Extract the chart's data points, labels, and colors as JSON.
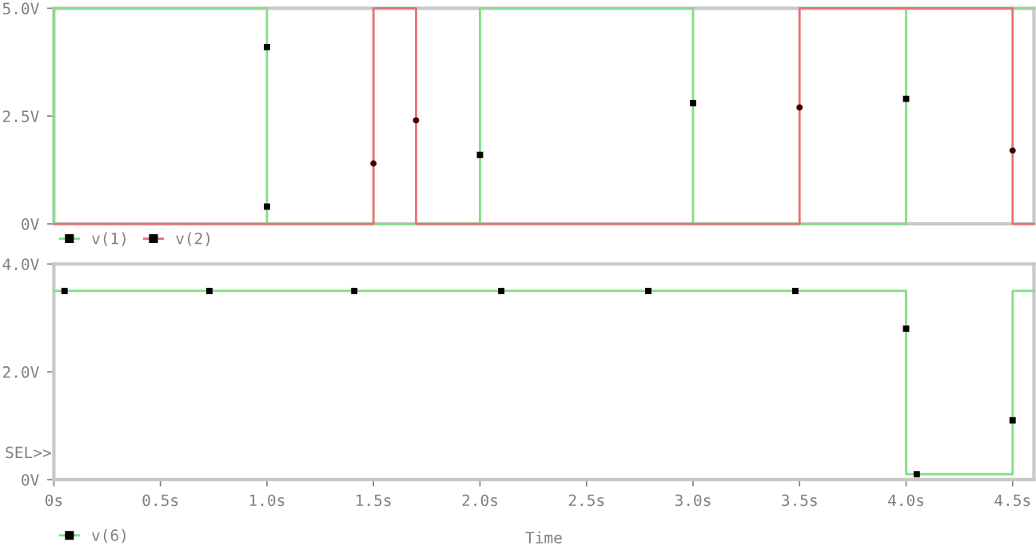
{
  "chart_data": [
    {
      "type": "line",
      "xlim": [
        0,
        4.6
      ],
      "ylim": [
        0,
        5.0
      ],
      "yticks": [
        {
          "value": 0,
          "label": "0V"
        },
        {
          "value": 2.5,
          "label": "2.5V"
        },
        {
          "value": 5.0,
          "label": "5.0V"
        }
      ],
      "tick_labels": "y",
      "grid": false,
      "legend": "bottom left",
      "marker": "none",
      "series": [
        {
          "name": "v(1)",
          "color": "#80e080",
          "x": [
            0,
            0,
            1,
            1,
            2,
            2,
            3,
            3,
            4,
            4,
            4.6
          ],
          "values": [
            0,
            5,
            5,
            0,
            0,
            5,
            5,
            0,
            0,
            5,
            5
          ]
        },
        {
          "name": "v(2)",
          "color": "#e87070",
          "x": [
            0,
            1.5,
            1.5,
            1.7,
            1.7,
            3.5,
            3.5,
            4.5,
            4.5,
            4.6
          ],
          "values": [
            0,
            0,
            5,
            5,
            0,
            0,
            5,
            5,
            0,
            0
          ]
        },
        {
          "type": "scatter",
          "marker": "square",
          "color": "#000000",
          "x": [
            1.0,
            1.0,
            2.0,
            3.0,
            4.0
          ],
          "values": [
            4.1,
            0.4,
            1.6,
            2.8,
            2.9
          ]
        },
        {
          "type": "scatter",
          "marker": "circle",
          "color": "#400000",
          "x": [
            1.5,
            1.7,
            3.5,
            4.5
          ],
          "values": [
            1.4,
            2.4,
            2.7,
            1.7
          ]
        }
      ]
    },
    {
      "type": "line",
      "xlim": [
        0,
        4.6
      ],
      "ylim": [
        0,
        4.0
      ],
      "xlabel": "Time",
      "xticks": [
        {
          "value": 0,
          "label": "0s"
        },
        {
          "value": 0.5,
          "label": "0.5s"
        },
        {
          "value": 1.0,
          "label": "1.0s"
        },
        {
          "value": 1.5,
          "label": "1.5s"
        },
        {
          "value": 2.0,
          "label": "2.0s"
        },
        {
          "value": 2.5,
          "label": "2.5s"
        },
        {
          "value": 3.0,
          "label": "3.0s"
        },
        {
          "value": 3.5,
          "label": "3.5s"
        },
        {
          "value": 4.0,
          "label": "4.0s"
        },
        {
          "value": 4.5,
          "label": "4.5s"
        }
      ],
      "yticks": [
        {
          "value": 0,
          "label": "0V"
        },
        {
          "value": 2.0,
          "label": "2.0V"
        },
        {
          "value": 4.0,
          "label": "4.0V"
        }
      ],
      "grid": false,
      "legend": "bottom left",
      "marker": "none",
      "annotations": [
        "SEL>>"
      ],
      "series": [
        {
          "name": "v(6)",
          "color": "#80e080",
          "x": [
            0,
            4,
            4,
            4.5,
            4.5,
            4.6
          ],
          "values": [
            3.5,
            3.5,
            0.1,
            0.1,
            3.5,
            3.5
          ]
        },
        {
          "type": "scatter",
          "marker": "square",
          "color": "#000000",
          "x": [
            0.05,
            0.73,
            1.41,
            2.1,
            2.79,
            3.48,
            4.0,
            4.05,
            4.5
          ],
          "values": [
            3.5,
            3.5,
            3.5,
            3.5,
            3.5,
            3.5,
            2.8,
            0.1,
            1.1
          ]
        }
      ]
    }
  ]
}
